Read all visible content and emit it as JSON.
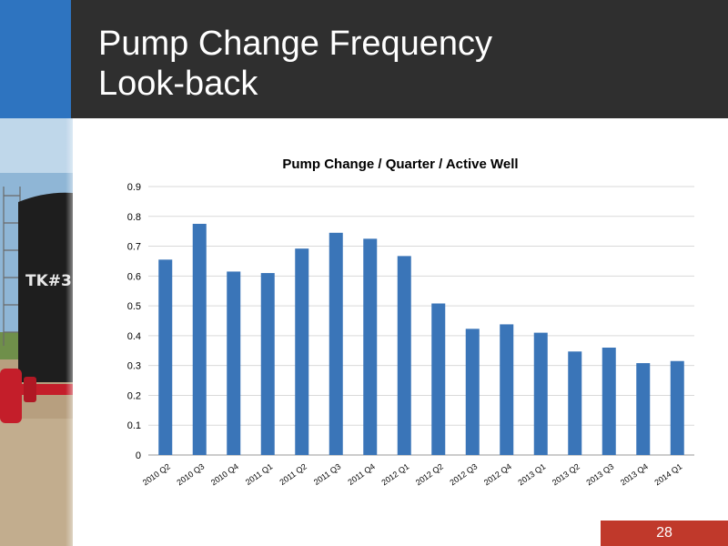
{
  "slide": {
    "title_line1": "Pump Change Frequency",
    "title_line2": "Look-back",
    "page_number": "28"
  },
  "colors": {
    "header_bg": "#2f2f2f",
    "accent_blue": "#2e74c0",
    "bar_color": "#3a75b8",
    "page_badge": "#c0392b"
  },
  "chart_data": {
    "type": "bar",
    "title": "Pump Change / Quarter / Active Well",
    "xlabel": "",
    "ylabel": "",
    "ylim": [
      0,
      0.9
    ],
    "yticks": [
      "0",
      "0.1",
      "0.2",
      "0.3",
      "0.4",
      "0.5",
      "0.6",
      "0.7",
      "0.8",
      "0.9"
    ],
    "grid": true,
    "categories": [
      "2010 Q2",
      "2010 Q3",
      "2010 Q4",
      "2011 Q1",
      "2011 Q2",
      "2011 Q3",
      "2011 Q4",
      "2012 Q1",
      "2012 Q2",
      "2012 Q3",
      "2012 Q4",
      "2013 Q1",
      "2013 Q2",
      "2013 Q3",
      "2013 Q4",
      "2014 Q1"
    ],
    "values": [
      0.655,
      0.775,
      0.615,
      0.61,
      0.692,
      0.745,
      0.725,
      0.667,
      0.508,
      0.423,
      0.438,
      0.41,
      0.347,
      0.36,
      0.308,
      0.315
    ]
  }
}
